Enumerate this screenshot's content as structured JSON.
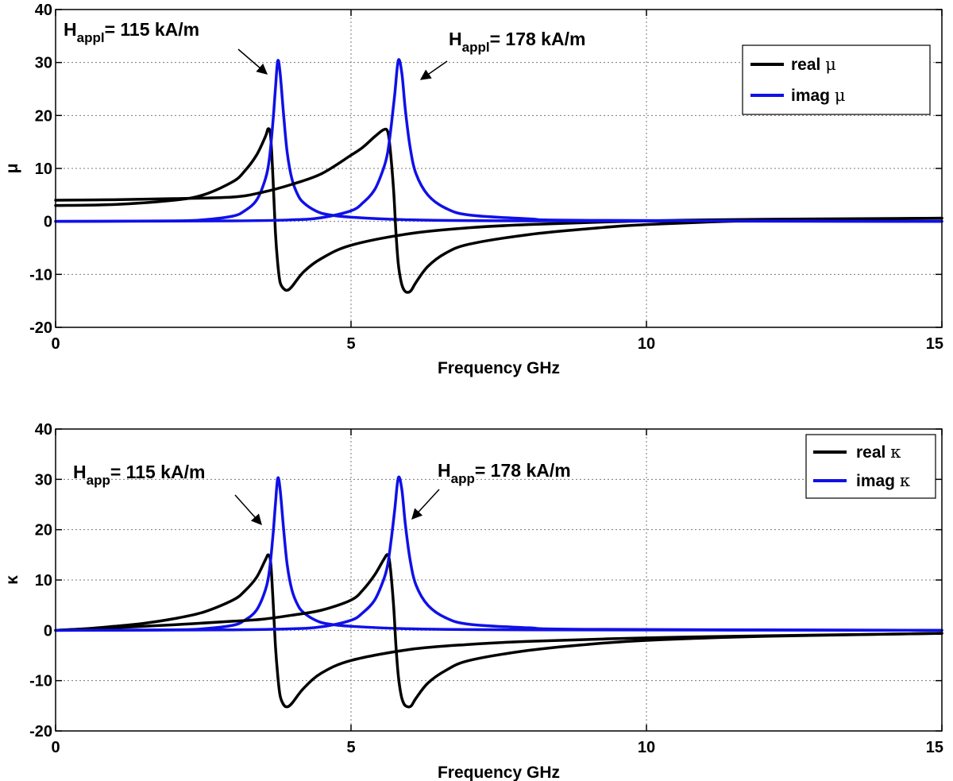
{
  "chart_data": [
    {
      "type": "line",
      "xlabel": "Frequency GHz",
      "ylabel": "μ",
      "xlim": [
        0,
        15
      ],
      "ylim": [
        -20,
        40
      ],
      "xticks": [
        "0",
        "5",
        "10",
        "15"
      ],
      "yticks": [
        "-20",
        "-10",
        "0",
        "10",
        "20",
        "30",
        "40"
      ],
      "xtick_values": [
        0,
        5,
        10,
        15
      ],
      "ytick_values": [
        -20,
        -10,
        0,
        10,
        20,
        30,
        40
      ],
      "grid": true,
      "legend_position": "top-right",
      "legend": [
        {
          "name": "real",
          "symbol": "μ",
          "color": "#000000"
        },
        {
          "name": "imag",
          "symbol": "μ",
          "color": "#1010e8"
        }
      ],
      "series": [
        {
          "name": "real μ (H = 115 kA/m)",
          "color": "#000000",
          "x": [
            0,
            1,
            2,
            2.5,
            3,
            3.2,
            3.4,
            3.55,
            3.6,
            3.64,
            3.68,
            3.72,
            3.76,
            3.8,
            3.86,
            3.92,
            4.0,
            4.2,
            4.5,
            5,
            6,
            7,
            8,
            10,
            12,
            15
          ],
          "y": [
            3,
            3.2,
            4,
            5,
            7.5,
            9.5,
            12.5,
            16,
            17.5,
            16,
            8,
            -2,
            -8,
            -11.5,
            -12.7,
            -13,
            -12.3,
            -9.5,
            -7,
            -4.5,
            -2.3,
            -1.2,
            -0.6,
            0.1,
            0.4,
            0.6
          ]
        },
        {
          "name": "imag μ (H = 115 kA/m)",
          "color": "#1010e8",
          "x": [
            0,
            2,
            2.5,
            3,
            3.2,
            3.4,
            3.55,
            3.62,
            3.68,
            3.72,
            3.76,
            3.8,
            3.86,
            3.92,
            4.0,
            4.1,
            4.2,
            4.4,
            4.6,
            5,
            6,
            8,
            15
          ],
          "y": [
            0,
            0.1,
            0.3,
            1,
            2,
            4,
            8,
            12,
            19,
            25,
            30.3,
            28,
            20,
            13,
            8,
            5,
            3.5,
            2,
            1.3,
            0.8,
            0.3,
            0.1,
            0
          ]
        },
        {
          "name": "real μ (H = 178 kA/m)",
          "color": "#000000",
          "x": [
            0,
            1,
            2,
            3,
            3.5,
            4,
            4.5,
            5,
            5.2,
            5.4,
            5.55,
            5.62,
            5.66,
            5.72,
            5.76,
            5.8,
            5.85,
            5.9,
            5.96,
            6.02,
            6.1,
            6.3,
            6.6,
            7,
            8,
            9,
            10,
            12,
            15
          ],
          "y": [
            4,
            4.1,
            4.3,
            4.6,
            5.5,
            7,
            9,
            12.5,
            14,
            16,
            17.3,
            17,
            14,
            6,
            -2,
            -8,
            -11.5,
            -13,
            -13.4,
            -13,
            -11.5,
            -8.5,
            -6,
            -4.3,
            -2.5,
            -1.4,
            -0.6,
            0.2,
            0.6
          ]
        },
        {
          "name": "imag μ (H = 178 kA/m)",
          "color": "#1010e8",
          "x": [
            0,
            3,
            4,
            4.5,
            5,
            5.2,
            5.4,
            5.55,
            5.62,
            5.68,
            5.74,
            5.8,
            5.86,
            5.92,
            6.0,
            6.1,
            6.3,
            6.6,
            7,
            8,
            9,
            15
          ],
          "y": [
            0,
            0.1,
            0.3,
            0.7,
            2,
            3.5,
            6,
            10,
            13,
            18,
            24,
            30.4,
            28,
            21,
            14,
            9,
            5,
            2.5,
            1.2,
            0.5,
            0.2,
            0
          ]
        }
      ],
      "annotations": [
        {
          "main": "H",
          "sub": "appl",
          "text": "= 115 kA/m",
          "points_to": [
            3.65,
            28
          ]
        },
        {
          "main": "H",
          "sub": "appl",
          "text": "= 178 kA/m",
          "points_to": [
            5.7,
            27
          ]
        }
      ]
    },
    {
      "type": "line",
      "xlabel": "Frequency GHz",
      "ylabel": "κ",
      "xlim": [
        0,
        15
      ],
      "ylim": [
        -20,
        40
      ],
      "xticks": [
        "0",
        "5",
        "10",
        "15"
      ],
      "yticks": [
        "-20",
        "-10",
        "0",
        "10",
        "20",
        "30",
        "40"
      ],
      "xtick_values": [
        0,
        5,
        10,
        15
      ],
      "ytick_values": [
        -20,
        -10,
        0,
        10,
        20,
        30,
        40
      ],
      "grid": true,
      "legend_position": "top-right",
      "legend": [
        {
          "name": "real",
          "symbol": "κ",
          "color": "#000000"
        },
        {
          "name": "imag",
          "symbol": "κ",
          "color": "#1010e8"
        }
      ],
      "series": [
        {
          "name": "real κ (H = 115 kA/m)",
          "color": "#000000",
          "x": [
            0,
            0.5,
            1,
            1.5,
            2,
            2.5,
            3,
            3.2,
            3.4,
            3.55,
            3.6,
            3.64,
            3.68,
            3.72,
            3.76,
            3.8,
            3.86,
            3.92,
            4.0,
            4.2,
            4.5,
            5,
            6,
            7,
            8,
            10,
            12,
            15
          ],
          "y": [
            0,
            0.3,
            0.8,
            1.4,
            2.3,
            3.6,
            6,
            7.8,
            10.5,
            14,
            15,
            13.5,
            6,
            -3,
            -9,
            -13,
            -14.8,
            -15.2,
            -14.5,
            -11.5,
            -8.5,
            -6,
            -3.8,
            -2.8,
            -2.2,
            -1.5,
            -1.1,
            -0.6
          ]
        },
        {
          "name": "imag κ (H = 115 kA/m)",
          "color": "#1010e8",
          "x": [
            0,
            2,
            2.5,
            3,
            3.2,
            3.4,
            3.55,
            3.62,
            3.68,
            3.72,
            3.76,
            3.8,
            3.86,
            3.92,
            4.0,
            4.1,
            4.2,
            4.4,
            4.6,
            5,
            6,
            8,
            15
          ],
          "y": [
            0,
            0.1,
            0.3,
            1,
            2,
            4,
            8,
            12,
            19,
            25,
            30.2,
            28,
            20,
            13,
            8,
            5,
            3.5,
            2,
            1.3,
            0.8,
            0.3,
            0.1,
            0
          ]
        },
        {
          "name": "real κ (H = 178 kA/m)",
          "color": "#000000",
          "x": [
            0,
            1,
            2,
            3,
            3.5,
            4,
            4.5,
            5,
            5.2,
            5.4,
            5.55,
            5.62,
            5.66,
            5.72,
            5.76,
            5.8,
            5.85,
            5.9,
            5.96,
            6.02,
            6.1,
            6.3,
            6.6,
            7,
            8,
            9,
            10,
            12,
            15
          ],
          "y": [
            0,
            0.5,
            1.1,
            1.8,
            2.2,
            3,
            4,
            6,
            8,
            11,
            14,
            15,
            13,
            5,
            -3,
            -9,
            -13,
            -14.7,
            -15.2,
            -15,
            -13.5,
            -10.5,
            -8,
            -6,
            -4,
            -2.8,
            -2,
            -1.2,
            -0.6
          ]
        },
        {
          "name": "imag κ (H = 178 kA/m)",
          "color": "#1010e8",
          "x": [
            0,
            3,
            4,
            4.5,
            5,
            5.2,
            5.4,
            5.55,
            5.62,
            5.68,
            5.74,
            5.8,
            5.86,
            5.92,
            6.0,
            6.1,
            6.3,
            6.6,
            7,
            8,
            9,
            15
          ],
          "y": [
            0,
            0.1,
            0.3,
            0.7,
            2,
            3.5,
            6,
            10,
            13,
            18,
            24,
            30.3,
            28,
            21,
            14,
            9,
            5,
            2.5,
            1.2,
            0.5,
            0.2,
            0
          ]
        }
      ],
      "annotations": [
        {
          "main": "H",
          "sub": "app",
          "text": "= 115 kA/m",
          "points_to": [
            3.45,
            20
          ]
        },
        {
          "main": "H",
          "sub": "app",
          "text": "= 178 kA/m",
          "points_to": [
            5.9,
            21
          ]
        }
      ]
    }
  ]
}
